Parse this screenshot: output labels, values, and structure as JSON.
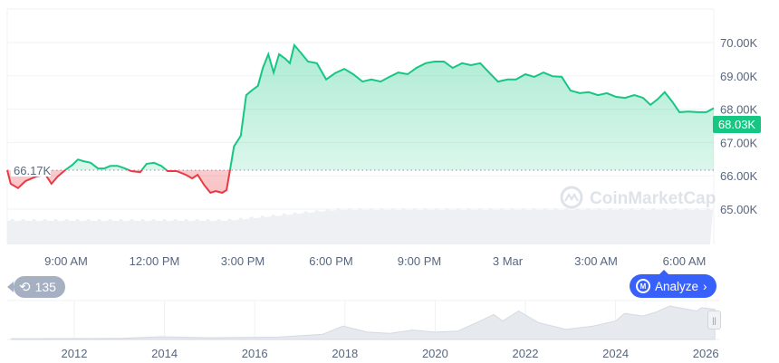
{
  "chart_data": {
    "type": "area",
    "baseline": 66.17,
    "baseline_label": "66.17K",
    "current_price_label": "68.03K",
    "y_ticks": [
      "70.00K",
      "69.00K",
      "68.00K",
      "67.00K",
      "66.00K",
      "65.00K"
    ],
    "y_tick_values": [
      70,
      69,
      68,
      67,
      66,
      65
    ],
    "ylim": [
      64.0,
      71.0
    ],
    "x_ticks": [
      "9:00 AM",
      "12:00 PM",
      "3:00 PM",
      "6:00 PM",
      "9:00 PM",
      "3 Mar",
      "3:00 AM",
      "6:00 AM"
    ],
    "grid": true,
    "colors": {
      "up": "#16c784",
      "down": "#ea3943",
      "axis_text": "#58667e",
      "volume": "#eef0f4"
    },
    "series": {
      "times": [
        "07:00",
        "07:07",
        "07:22",
        "07:37",
        "07:59",
        "08:18",
        "08:30",
        "08:43",
        "08:58",
        "09:13",
        "09:24",
        "09:35",
        "09:50",
        "10:05",
        "10:18",
        "10:30",
        "10:45",
        "11:00",
        "11:13",
        "11:31",
        "11:44",
        "11:59",
        "12:14",
        "12:27",
        "12:45",
        "13:04",
        "13:17",
        "13:28",
        "13:41",
        "13:54",
        "14:05",
        "14:18",
        "14:27",
        "14:34",
        "14:42",
        "14:56",
        "15:07",
        "15:18",
        "15:31",
        "15:41",
        "15:52",
        "16:03",
        "16:14",
        "16:27",
        "16:36",
        "16:45",
        "16:58",
        "17:13",
        "17:31",
        "17:50",
        "18:08",
        "18:27",
        "18:45",
        "19:04",
        "19:22",
        "19:41",
        "19:59",
        "20:17",
        "20:36",
        "20:54",
        "21:13",
        "21:31",
        "21:50",
        "22:08",
        "22:27",
        "22:45",
        "23:04",
        "23:22",
        "23:40",
        "00:00",
        "00:17",
        "00:36",
        "00:54",
        "01:13",
        "01:31",
        "01:50",
        "02:08",
        "02:27",
        "02:45",
        "03:04",
        "03:22",
        "03:41",
        "03:59",
        "04:18",
        "04:36",
        "04:51",
        "05:05",
        "05:20",
        "05:35",
        "05:50",
        "06:08",
        "06:27",
        "06:45",
        "07:00"
      ],
      "price_k": [
        66.17,
        65.76,
        65.63,
        65.84,
        65.98,
        66.03,
        65.76,
        65.98,
        66.17,
        66.33,
        66.49,
        66.44,
        66.39,
        66.22,
        66.22,
        66.3,
        66.3,
        66.22,
        66.14,
        66.11,
        66.36,
        66.39,
        66.3,
        66.14,
        66.14,
        66.03,
        65.92,
        66.03,
        65.73,
        65.49,
        65.54,
        65.49,
        65.57,
        66.17,
        66.88,
        67.2,
        68.42,
        68.56,
        68.7,
        69.24,
        69.65,
        69.1,
        69.65,
        69.51,
        69.38,
        69.92,
        69.7,
        69.43,
        69.38,
        68.89,
        69.08,
        69.21,
        69.05,
        68.83,
        68.89,
        68.83,
        68.97,
        69.1,
        69.05,
        69.24,
        69.38,
        69.43,
        69.43,
        69.24,
        69.38,
        69.32,
        69.38,
        69.1,
        68.83,
        68.89,
        68.89,
        69.05,
        68.97,
        69.1,
        68.99,
        68.97,
        68.56,
        68.48,
        68.51,
        68.42,
        68.48,
        68.37,
        68.34,
        68.42,
        68.34,
        68.13,
        68.29,
        68.51,
        68.23,
        67.91,
        67.93,
        67.91,
        67.91,
        68.03
      ]
    },
    "overview": {
      "x_ticks": [
        "2012",
        "2014",
        "2016",
        "2018",
        "2020",
        "2022",
        "2024",
        "2026"
      ],
      "years": [
        2010.6,
        2013.0,
        2013.9,
        2015.0,
        2016.5,
        2017.5,
        2017.96,
        2018.5,
        2019.0,
        2019.5,
        2020.0,
        2020.5,
        2021.0,
        2021.3,
        2021.5,
        2021.85,
        2022.3,
        2022.9,
        2023.5,
        2024.0,
        2024.2,
        2024.6,
        2024.9,
        2025.2,
        2025.8,
        2025.9,
        2026.2
      ],
      "relative_level": [
        0.02,
        0.03,
        0.08,
        0.05,
        0.07,
        0.15,
        0.4,
        0.22,
        0.18,
        0.28,
        0.22,
        0.25,
        0.55,
        0.75,
        0.55,
        0.85,
        0.5,
        0.3,
        0.4,
        0.55,
        0.78,
        0.7,
        0.82,
        1.0,
        0.85,
        0.95,
        0.9
      ]
    }
  },
  "watermark": "CoinMarketCap",
  "history_badge": {
    "count": "135"
  },
  "analyze_button": {
    "label": "Analyze"
  }
}
